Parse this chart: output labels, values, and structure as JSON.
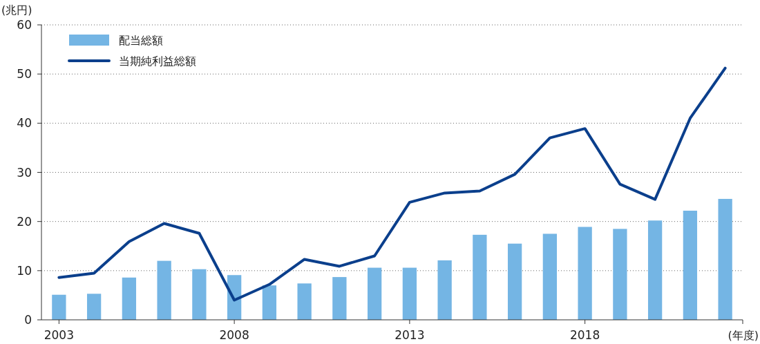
{
  "chart_data": {
    "type": "bar",
    "xlabel": "(年度)",
    "ylabel": "(兆円)",
    "x": [
      2003,
      2004,
      2005,
      2006,
      2007,
      2008,
      2009,
      2010,
      2011,
      2012,
      2013,
      2014,
      2015,
      2016,
      2017,
      2018,
      2019,
      2020,
      2021,
      2022
    ],
    "series": [
      {
        "name": "配当総額",
        "color": "#74b5e4",
        "values": [
          5.1,
          5.3,
          8.6,
          12.0,
          10.3,
          9.1,
          7.0,
          7.4,
          8.7,
          10.6,
          10.6,
          12.1,
          17.3,
          15.5,
          17.5,
          18.9,
          18.5,
          20.2,
          22.2,
          24.6
        ]
      },
      {
        "name": "当期純利益総額",
        "type": "line",
        "color": "#0b3f8c",
        "values": [
          8.6,
          9.5,
          15.9,
          19.6,
          17.6,
          4.0,
          7.2,
          12.3,
          10.9,
          13.0,
          23.9,
          25.8,
          26.2,
          29.6,
          37.0,
          38.9,
          27.6,
          24.5,
          41.0,
          51.2
        ]
      }
    ],
    "xlim": [
      2002.5,
      2022.5
    ],
    "xticks": [
      2003,
      2008,
      2013,
      2018
    ],
    "ylim": [
      0,
      60
    ],
    "yticks": [
      0,
      10,
      20,
      30,
      40,
      50,
      60
    ],
    "grid": "y",
    "legend": "top left"
  }
}
